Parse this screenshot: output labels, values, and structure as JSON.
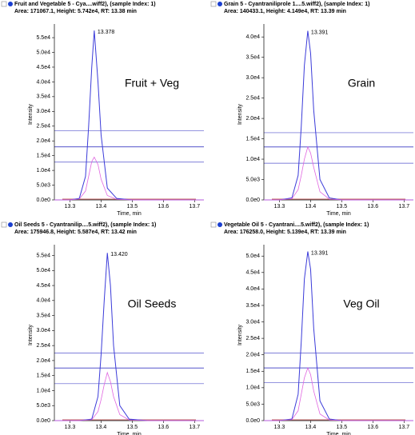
{
  "chart_data": [
    {
      "type": "line",
      "title": "Fruit and Vegetable 5 - Cya....wiff2), (sample Index: 1)",
      "subtitle": "Area: 171067.1, Height: 5.742e4, RT: 13.38 min",
      "xlabel": "Time, min",
      "ylabel": "Intensity",
      "annotation": "Fruit + Veg",
      "peak": {
        "x": 13.378,
        "y": 57420,
        "label": "13.378"
      },
      "x": [
        13.25,
        13.3,
        13.33,
        13.35,
        13.36,
        13.37,
        13.378,
        13.39,
        13.4,
        13.42,
        13.45,
        13.5,
        13.73
      ],
      "series": [
        {
          "color": "#3b3bd9",
          "values": [
            0,
            0,
            500,
            8000,
            25000,
            45000,
            57420,
            40000,
            22000,
            4000,
            500,
            0,
            0
          ]
        },
        {
          "color": "#e066e0",
          "values": [
            0,
            0,
            300,
            3000,
            8000,
            13000,
            14500,
            12000,
            7000,
            1500,
            200,
            0,
            0
          ]
        }
      ],
      "hlines": [
        23500,
        18000,
        12800
      ],
      "hline_color": "#5555cc",
      "xlim": [
        13.25,
        13.73
      ],
      "ylim": [
        0,
        58000
      ],
      "xticks": [
        13.3,
        13.4,
        13.5,
        13.6,
        13.7
      ],
      "yticks": [
        {
          "value": 0,
          "label": "0.0e0"
        },
        {
          "value": 5000,
          "label": "5.0e3"
        },
        {
          "value": 10000,
          "label": "1.0e4"
        },
        {
          "value": 15000,
          "label": "1.5e4"
        },
        {
          "value": 20000,
          "label": "2.0e4"
        },
        {
          "value": 25000,
          "label": "2.5e4"
        },
        {
          "value": 30000,
          "label": "3.0e4"
        },
        {
          "value": 35000,
          "label": "3.5e4"
        },
        {
          "value": 40000,
          "label": "4.0e4"
        },
        {
          "value": 45000,
          "label": "4.5e4"
        },
        {
          "value": 50000,
          "label": "5.0e4"
        },
        {
          "value": 55000,
          "label": "5.5e4"
        }
      ]
    },
    {
      "type": "line",
      "title": "Grain 5 - Cyantraniliprole 1....5.wiff2), (sample Index: 1)",
      "subtitle": "Area: 140433.1, Height: 4.149e4, RT: 13.39 min",
      "xlabel": "Time, min",
      "ylabel": "Intensity",
      "annotation": "Grain",
      "peak": {
        "x": 13.391,
        "y": 41490,
        "label": "13.391"
      },
      "x": [
        13.25,
        13.3,
        13.34,
        13.36,
        13.37,
        13.38,
        13.391,
        13.4,
        13.41,
        13.43,
        13.46,
        13.5,
        13.73
      ],
      "series": [
        {
          "color": "#3b3bd9",
          "values": [
            0,
            0,
            500,
            6000,
            18000,
            33000,
            41490,
            36000,
            22000,
            5000,
            500,
            0,
            0
          ]
        },
        {
          "color": "#e066e0",
          "values": [
            0,
            0,
            300,
            2500,
            6000,
            10000,
            13000,
            11500,
            8000,
            2000,
            200,
            0,
            0
          ]
        }
      ],
      "hlines": [
        16500,
        13000,
        9000
      ],
      "hline_color": "#5555cc",
      "xlim": [
        13.25,
        13.73
      ],
      "ylim": [
        0,
        42000
      ],
      "xticks": [
        13.3,
        13.4,
        13.5,
        13.6,
        13.7
      ],
      "yticks": [
        {
          "value": 0,
          "label": "0.0e0"
        },
        {
          "value": 5000,
          "label": "5.0e3"
        },
        {
          "value": 10000,
          "label": "1.0e4"
        },
        {
          "value": 15000,
          "label": "1.5e4"
        },
        {
          "value": 20000,
          "label": "2.0e4"
        },
        {
          "value": 25000,
          "label": "2.5e4"
        },
        {
          "value": 30000,
          "label": "3.0e4"
        },
        {
          "value": 35000,
          "label": "3.5e4"
        },
        {
          "value": 40000,
          "label": "4.0e4"
        }
      ]
    },
    {
      "type": "line",
      "title": "Oil Seeds 5 - Cyantranilip....5.wiff2), (sample Index: 1)",
      "subtitle": "Area: 175946.8, Height: 5.587e4, RT: 13.42 min",
      "xlabel": "Time, min",
      "ylabel": "Intensity",
      "annotation": "Oil Seeds",
      "peak": {
        "x": 13.42,
        "y": 55870,
        "label": "13.420"
      },
      "x": [
        13.25,
        13.33,
        13.37,
        13.39,
        13.4,
        13.41,
        13.42,
        13.43,
        13.44,
        13.46,
        13.49,
        13.55,
        13.73
      ],
      "series": [
        {
          "color": "#3b3bd9",
          "values": [
            0,
            0,
            500,
            8000,
            22000,
            40000,
            55870,
            45000,
            25000,
            5000,
            500,
            0,
            0
          ]
        },
        {
          "color": "#e066e0",
          "values": [
            0,
            0,
            300,
            3000,
            7000,
            12000,
            16000,
            13000,
            8000,
            2000,
            200,
            0,
            0
          ]
        }
      ],
      "hlines": [
        22500,
        17500,
        12300
      ],
      "hline_color": "#5555cc",
      "xlim": [
        13.25,
        13.73
      ],
      "ylim": [
        0,
        57000
      ],
      "xticks": [
        13.3,
        13.4,
        13.5,
        13.6,
        13.7
      ],
      "yticks": [
        {
          "value": 0,
          "label": "0.0e0"
        },
        {
          "value": 5000,
          "label": "5.0e3"
        },
        {
          "value": 10000,
          "label": "1.0e4"
        },
        {
          "value": 15000,
          "label": "1.5e4"
        },
        {
          "value": 20000,
          "label": "2.0e4"
        },
        {
          "value": 25000,
          "label": "2.5e4"
        },
        {
          "value": 30000,
          "label": "3.0e4"
        },
        {
          "value": 35000,
          "label": "3.5e4"
        },
        {
          "value": 40000,
          "label": "4.0e4"
        },
        {
          "value": 45000,
          "label": "4.5e4"
        },
        {
          "value": 50000,
          "label": "5.0e4"
        },
        {
          "value": 55000,
          "label": "5.5e4"
        }
      ]
    },
    {
      "type": "line",
      "title": "Vegetable Oil 5 - Cyantrani....5.wiff2), (sample Index: 1)",
      "subtitle": "Area: 176258.0, Height: 5.139e4, RT: 13.39 min",
      "xlabel": "Time, min",
      "ylabel": "Intensity",
      "annotation": "Veg Oil",
      "peak": {
        "x": 13.391,
        "y": 51390,
        "label": "13.391"
      },
      "x": [
        13.25,
        13.3,
        13.34,
        13.36,
        13.37,
        13.38,
        13.391,
        13.4,
        13.41,
        13.43,
        13.46,
        13.5,
        13.73
      ],
      "series": [
        {
          "color": "#3b3bd9",
          "values": [
            0,
            0,
            500,
            8000,
            24000,
            43000,
            51390,
            46000,
            28000,
            6000,
            500,
            0,
            0
          ]
        },
        {
          "color": "#e066e0",
          "values": [
            0,
            0,
            300,
            3000,
            8000,
            13000,
            16000,
            14000,
            9000,
            2000,
            200,
            0,
            0
          ]
        }
      ],
      "hlines": [
        20500,
        16000,
        11500
      ],
      "hline_color": "#5555cc",
      "xlim": [
        13.25,
        13.73
      ],
      "ylim": [
        0,
        52000
      ],
      "xticks": [
        13.3,
        13.4,
        13.5,
        13.6,
        13.7
      ],
      "yticks": [
        {
          "value": 0,
          "label": "0.0e0"
        },
        {
          "value": 5000,
          "label": "5.0e3"
        },
        {
          "value": 10000,
          "label": "1.0e4"
        },
        {
          "value": 15000,
          "label": "1.5e4"
        },
        {
          "value": 20000,
          "label": "2.0e4"
        },
        {
          "value": 25000,
          "label": "2.5e4"
        },
        {
          "value": 30000,
          "label": "3.0e4"
        },
        {
          "value": 35000,
          "label": "3.5e4"
        },
        {
          "value": 40000,
          "label": "4.0e4"
        },
        {
          "value": 45000,
          "label": "4.5e4"
        },
        {
          "value": 50000,
          "label": "5.0e4"
        }
      ]
    }
  ]
}
